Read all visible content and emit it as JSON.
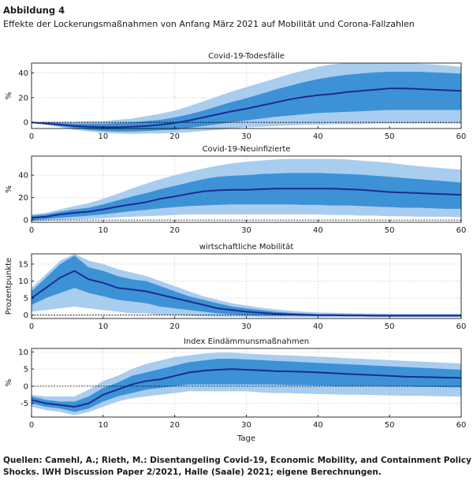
{
  "figure": {
    "label": "Abbildung 4",
    "title": "Effekte der Lockerungsmaßnahmen von Anfang März 2021 auf Mobilität und Corona-Fallzahlen",
    "source": "Quellen: Camehl, A.; Rieth, M.: Disentangeling Covid-19, Economic Mobility, and Containment Policy Shocks. IWH Discussion Paper 2/2021, Halle (Saale) 2021; eigene Berechnungen.",
    "colors": {
      "outer_band": "#a9cdef",
      "inner_band": "#3d92d6",
      "median_line": "#1f2b8f",
      "zero_line": "#000000"
    }
  },
  "chart_data": [
    {
      "type": "area",
      "title": "Covid-19-Todesfälle",
      "ylabel": "%",
      "xlabel": "",
      "xlim": [
        0,
        60
      ],
      "ylim": [
        -5,
        48
      ],
      "xticks": [
        0,
        10,
        20,
        30,
        40,
        50,
        60
      ],
      "yticks": [
        0,
        20,
        40
      ],
      "grid": "dotted",
      "x": [
        0,
        2,
        4,
        6,
        8,
        10,
        12,
        14,
        16,
        18,
        20,
        22,
        24,
        26,
        28,
        30,
        32,
        34,
        36,
        38,
        40,
        42,
        44,
        46,
        48,
        50,
        52,
        54,
        56,
        58,
        60
      ],
      "median": [
        0,
        -1,
        -2,
        -3,
        -3.5,
        -4,
        -4,
        -3.5,
        -3,
        -2,
        -0.5,
        1.5,
        4,
        6.5,
        9,
        11,
        13.5,
        16,
        18.5,
        20.5,
        22,
        23,
        24.5,
        25.5,
        26.5,
        27.5,
        27.5,
        27,
        26.5,
        26,
        25.5
      ],
      "inner_band": {
        "lower": [
          0,
          -1.5,
          -3,
          -4.5,
          -6,
          -7,
          -7.5,
          -7.5,
          -7,
          -6.5,
          -6,
          -4.5,
          -3,
          -1.5,
          0,
          1.5,
          3,
          4.5,
          5.5,
          6.5,
          7.5,
          8,
          8.5,
          9,
          9.5,
          10,
          10,
          10,
          10,
          10,
          10
        ],
        "upper": [
          0,
          0,
          -0.5,
          -1,
          -1,
          -1,
          -0.5,
          0,
          1,
          2,
          4,
          6.5,
          9.5,
          13,
          16.5,
          19.5,
          23,
          26.5,
          29.5,
          32.5,
          35,
          37,
          38.5,
          39.5,
          40.5,
          41,
          41,
          41,
          40.5,
          40,
          39.5
        ]
      },
      "outer_band": {
        "lower": [
          0,
          -2,
          -4,
          -6,
          -7.5,
          -8.5,
          -9,
          -9.5,
          -9,
          -9,
          -8.5,
          -8,
          -7,
          -6,
          -5,
          -4,
          -3.5,
          -3,
          -2.5,
          -2,
          -2,
          -1.5,
          -1.5,
          -1.5,
          -1,
          -1,
          -1,
          -1,
          -1,
          -1,
          -1
        ],
        "upper": [
          0,
          0.5,
          0.5,
          0.5,
          1,
          1,
          2,
          3,
          5,
          7,
          9.5,
          13,
          17,
          21,
          25,
          28.5,
          32,
          35.5,
          39,
          42,
          45,
          47,
          48,
          48,
          48,
          48,
          48,
          47.5,
          47,
          46,
          45
        ]
      }
    },
    {
      "type": "area",
      "title": "Covid-19-Neuinfizierte",
      "ylabel": "%",
      "xlabel": "",
      "xlim": [
        0,
        60
      ],
      "ylim": [
        -2,
        57
      ],
      "xticks": [
        0,
        10,
        20,
        30,
        40,
        50,
        60
      ],
      "yticks": [
        0,
        20,
        40
      ],
      "grid": "dotted",
      "x": [
        0,
        2,
        4,
        6,
        8,
        10,
        12,
        14,
        16,
        18,
        20,
        22,
        24,
        26,
        28,
        30,
        32,
        34,
        36,
        38,
        40,
        42,
        44,
        46,
        48,
        50,
        52,
        54,
        56,
        58,
        60
      ],
      "median": [
        2,
        3,
        5,
        6.5,
        7.5,
        9.5,
        12,
        14,
        16,
        19,
        21,
        23.5,
        25.5,
        26.5,
        27,
        27,
        27.5,
        28,
        28,
        28,
        28,
        28,
        27.5,
        27,
        26,
        25,
        24.5,
        24,
        23.5,
        23,
        22.5
      ],
      "inner_band": {
        "lower": [
          0,
          1,
          2,
          3,
          4,
          5,
          6.5,
          8,
          9,
          10.5,
          11.5,
          12.5,
          13,
          13.5,
          14,
          14,
          14,
          14,
          14,
          13.5,
          13.5,
          13,
          13,
          12.5,
          12,
          11.5,
          11,
          11,
          10.5,
          10,
          10
        ],
        "upper": [
          4,
          5,
          7.5,
          9.5,
          11,
          14,
          17.5,
          21,
          24,
          27.5,
          30.5,
          33.5,
          36.5,
          38.5,
          39.5,
          40,
          41,
          41.5,
          42,
          42,
          42,
          41.5,
          41,
          40.5,
          39.5,
          38.5,
          37.5,
          36.5,
          35.5,
          34.5,
          33.5
        ]
      },
      "outer_band": {
        "lower": [
          -1,
          -0.5,
          0,
          0.5,
          1,
          1.5,
          2.5,
          3,
          3.5,
          4,
          4.5,
          5,
          5,
          5,
          5,
          5,
          5,
          5,
          5,
          5,
          5,
          4.5,
          4.5,
          4,
          4,
          3.5,
          3.5,
          3,
          3,
          3,
          2.5
        ],
        "upper": [
          5,
          6.5,
          9.5,
          12.5,
          15,
          19,
          23.5,
          28,
          32.5,
          36.5,
          40,
          43,
          46,
          48.5,
          50.5,
          52,
          53,
          54,
          54.5,
          54.5,
          54.5,
          54.5,
          54,
          53,
          52,
          51,
          49.5,
          48,
          47,
          46,
          45
        ]
      }
    },
    {
      "type": "area",
      "title": "wirtschaftliche Mobilität",
      "ylabel": "Prozentpunkte",
      "xlabel": "",
      "xlim": [
        0,
        60
      ],
      "ylim": [
        -1,
        18
      ],
      "xticks": [
        0,
        10,
        20,
        30,
        40,
        50,
        60
      ],
      "yticks": [
        0,
        5,
        10,
        15
      ],
      "grid": "dotted",
      "x": [
        0,
        2,
        4,
        6,
        8,
        10,
        12,
        14,
        16,
        18,
        20,
        22,
        24,
        26,
        28,
        30,
        32,
        34,
        36,
        38,
        40,
        42,
        44,
        46,
        48,
        50,
        52,
        54,
        56,
        58,
        60
      ],
      "median": [
        5,
        8,
        11,
        13,
        10.5,
        9.5,
        8,
        7.5,
        7,
        6,
        5,
        4,
        3,
        2,
        1.5,
        1,
        0.7,
        0.4,
        0.2,
        0.1,
        0,
        0,
        -0.1,
        -0.1,
        -0.2,
        -0.2,
        -0.2,
        -0.2,
        -0.2,
        -0.2,
        -0.2
      ],
      "inner_band": {
        "lower": [
          3,
          5,
          6.5,
          8,
          6.5,
          5.5,
          4.5,
          4,
          3.5,
          2.5,
          2,
          1.5,
          1,
          0.5,
          0.2,
          0,
          -0.1,
          -0.2,
          -0.2,
          -0.3,
          -0.3,
          -0.3,
          -0.3,
          -0.3,
          -0.4,
          -0.4,
          -0.4,
          -0.4,
          -0.4,
          -0.4,
          -0.4
        ],
        "upper": [
          7,
          11,
          15,
          17.5,
          14,
          13,
          11.5,
          10.5,
          10,
          8.5,
          7,
          5.5,
          4.5,
          3.5,
          2.5,
          2,
          1.5,
          1,
          0.7,
          0.5,
          0.3,
          0.3,
          0.2,
          0.2,
          0.1,
          0.1,
          0.1,
          0.1,
          0.1,
          0.1,
          0.1
        ]
      },
      "outer_band": {
        "lower": [
          1,
          1.5,
          2,
          2.5,
          2,
          1.5,
          1,
          0.5,
          0.5,
          0,
          0,
          -0.2,
          -0.4,
          -0.5,
          -0.5,
          -0.5,
          -0.6,
          -0.6,
          -0.6,
          -0.6,
          -0.6,
          -0.6,
          -0.6,
          -0.6,
          -0.6,
          -0.6,
          -0.6,
          -0.6,
          -0.6,
          -0.6,
          -0.6
        ],
        "upper": [
          8,
          12,
          16,
          18,
          16,
          15,
          13.5,
          12.5,
          11.5,
          10,
          8.5,
          7,
          5.5,
          4.5,
          3.5,
          2.8,
          2.2,
          1.7,
          1.3,
          1,
          0.8,
          0.7,
          0.6,
          0.5,
          0.5,
          0.4,
          0.4,
          0.4,
          0.4,
          0.4,
          0.4
        ]
      }
    },
    {
      "type": "area",
      "title": "Index Eindämmunsmaßnahmen",
      "ylabel": "%",
      "xlabel": "Tage",
      "xlim": [
        0,
        60
      ],
      "ylim": [
        -9,
        11
      ],
      "xticks": [
        0,
        10,
        20,
        30,
        40,
        50,
        60
      ],
      "yticks": [
        -5,
        0,
        5,
        10
      ],
      "grid": "dotted",
      "x": [
        0,
        2,
        4,
        6,
        8,
        10,
        12,
        14,
        16,
        18,
        20,
        22,
        24,
        26,
        28,
        30,
        32,
        34,
        36,
        38,
        40,
        42,
        44,
        46,
        48,
        50,
        52,
        54,
        56,
        58,
        60
      ],
      "median": [
        -4,
        -5,
        -5.5,
        -6,
        -5,
        -2.5,
        -1,
        0.5,
        1.5,
        2,
        3,
        4,
        4.5,
        4.8,
        5,
        4.8,
        4.6,
        4.4,
        4.3,
        4.2,
        4,
        3.8,
        3.6,
        3.4,
        3.2,
        3,
        2.8,
        2.7,
        2.6,
        2.5,
        2.4
      ],
      "inner_band": {
        "lower": [
          -5,
          -6,
          -6.5,
          -7.5,
          -6.5,
          -4.5,
          -3,
          -2,
          -1,
          -0.5,
          0,
          0.5,
          0.5,
          0.5,
          0.5,
          0.5,
          0.5,
          0.5,
          0.3,
          0.3,
          0.2,
          0.1,
          0,
          0,
          0,
          -0.1,
          -0.1,
          -0.2,
          -0.2,
          -0.3,
          -0.3
        ],
        "upper": [
          -3,
          -4,
          -4.5,
          -4.5,
          -3,
          -0.5,
          1,
          3,
          4,
          5,
          6,
          7,
          7.5,
          8,
          8,
          7.8,
          7.6,
          7.4,
          7.2,
          7,
          6.8,
          6.6,
          6.4,
          6.2,
          6,
          5.8,
          5.6,
          5.4,
          5.2,
          5,
          4.8
        ]
      },
      "outer_band": {
        "lower": [
          -6,
          -7,
          -7.5,
          -8.5,
          -7.5,
          -6,
          -4.5,
          -3.5,
          -3,
          -2.5,
          -2,
          -1.5,
          -1.5,
          -1.5,
          -1.5,
          -1.5,
          -1.8,
          -2,
          -2,
          -2.2,
          -2.3,
          -2.4,
          -2.5,
          -2.5,
          -2.6,
          -2.7,
          -2.8,
          -2.8,
          -2.9,
          -3,
          -3
        ],
        "upper": [
          -2.5,
          -3,
          -3,
          -3,
          -1,
          1.5,
          3,
          5,
          6.5,
          7.5,
          8.5,
          9,
          9.5,
          9.8,
          9.8,
          9.5,
          9.3,
          9.1,
          9,
          8.8,
          8.6,
          8.4,
          8.2,
          8,
          7.8,
          7.6,
          7.4,
          7.2,
          7,
          6.8,
          6.6
        ]
      }
    }
  ]
}
